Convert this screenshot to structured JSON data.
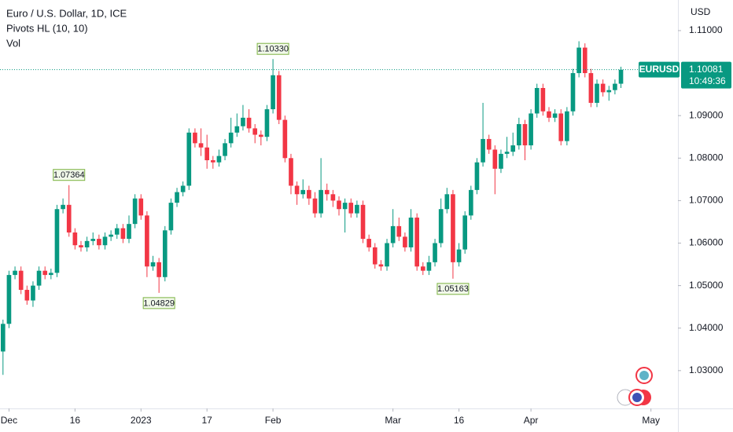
{
  "chart_data": {
    "type": "candlestick",
    "title": "Euro / U.S. Dollar, 1D, ICE",
    "indicators": [
      "Pivots HL (10, 10)",
      "Vol"
    ],
    "currency": "USD",
    "up_color": "#089981",
    "down_color": "#f23645",
    "grid": false,
    "xlim": [
      -0.5,
      112.5
    ],
    "ylim": [
      1.0211,
      1.1172
    ],
    "yticks": [
      {
        "value": 1.03,
        "label": "1.03000"
      },
      {
        "value": 1.04,
        "label": "1.04000"
      },
      {
        "value": 1.05,
        "label": "1.05000"
      },
      {
        "value": 1.06,
        "label": "1.06000"
      },
      {
        "value": 1.07,
        "label": "1.07000"
      },
      {
        "value": 1.08,
        "label": "1.08000"
      },
      {
        "value": 1.09,
        "label": "1.09000"
      },
      {
        "value": 1.11,
        "label": "1.11000"
      }
    ],
    "xticks": [
      {
        "value": 1,
        "label": "Dec"
      },
      {
        "value": 12,
        "label": "16"
      },
      {
        "value": 23,
        "label": "2023"
      },
      {
        "value": 34,
        "label": "17"
      },
      {
        "value": 45,
        "label": "Feb"
      },
      {
        "value": 65,
        "label": "Mar"
      },
      {
        "value": 76,
        "label": "16"
      },
      {
        "value": 88,
        "label": "Apr"
      },
      {
        "value": 108,
        "label": "May"
      }
    ],
    "open": [
      1.0345,
      1.041,
      1.0525,
      1.0535,
      1.049,
      1.0465,
      1.05,
      1.0535,
      1.0525,
      1.053,
      1.068,
      1.069,
      1.0625,
      1.0595,
      1.059,
      1.0605,
      1.061,
      1.0595,
      1.0615,
      1.062,
      1.0635,
      1.061,
      1.0645,
      1.0705,
      1.0665,
      1.0545,
      1.0555,
      1.052,
      1.063,
      1.0695,
      1.072,
      1.0735,
      1.086,
      1.0835,
      1.0825,
      1.0795,
      1.079,
      1.0805,
      1.0835,
      1.086,
      1.0875,
      1.0895,
      1.087,
      1.0855,
      1.085,
      1.0915,
      1.0995,
      1.089,
      1.08,
      1.0735,
      1.0715,
      1.0725,
      1.0705,
      1.067,
      1.0725,
      1.0715,
      1.07,
      1.068,
      1.0695,
      1.067,
      1.069,
      1.061,
      1.059,
      1.055,
      1.0545,
      1.06,
      1.064,
      1.0615,
      1.059,
      1.066,
      1.0545,
      1.0535,
      1.0555,
      1.06,
      1.068,
      1.0715,
      1.0555,
      1.0585,
      1.0665,
      1.0725,
      1.079,
      1.0845,
      1.082,
      1.0775,
      1.081,
      1.0815,
      1.083,
      1.088,
      1.083,
      1.0905,
      1.0965,
      1.091,
      1.0895,
      1.0905,
      1.084,
      1.091,
      1.1,
      1.106,
      1.1,
      1.093,
      1.0975,
      1.0955,
      1.096,
      1.0975
    ],
    "high": [
      1.042,
      1.0535,
      1.0545,
      1.0545,
      1.05,
      1.051,
      1.0545,
      1.0545,
      1.054,
      1.069,
      1.0705,
      1.07364,
      1.0635,
      1.0605,
      1.0615,
      1.0625,
      1.062,
      1.0625,
      1.063,
      1.0645,
      1.0645,
      1.0665,
      1.0715,
      1.0715,
      1.0675,
      1.057,
      1.0565,
      1.064,
      1.0705,
      1.073,
      1.0745,
      1.087,
      1.087,
      1.087,
      1.0855,
      1.0805,
      1.082,
      1.0845,
      1.0895,
      1.0905,
      1.0925,
      1.0915,
      1.088,
      1.0865,
      1.0925,
      1.1033,
      1.1005,
      1.09,
      1.081,
      1.0745,
      1.075,
      1.0735,
      1.072,
      1.08,
      1.074,
      1.0725,
      1.071,
      1.0705,
      1.0705,
      1.07,
      1.07,
      1.062,
      1.06,
      1.056,
      1.061,
      1.068,
      1.066,
      1.0625,
      1.068,
      1.067,
      1.0555,
      1.057,
      1.061,
      1.0705,
      1.073,
      1.0725,
      1.06,
      1.0675,
      1.0735,
      1.08,
      1.093,
      1.0855,
      1.083,
      1.082,
      1.085,
      1.086,
      1.0895,
      1.089,
      1.0915,
      1.0975,
      1.0975,
      1.092,
      1.0915,
      1.0915,
      1.092,
      1.101,
      1.1075,
      1.107,
      1.101,
      1.0985,
      1.0985,
      1.097,
      1.0985,
      1.1015
    ],
    "low": [
      1.029,
      1.04,
      1.0515,
      1.048,
      1.0455,
      1.045,
      1.049,
      1.0515,
      1.0515,
      1.052,
      1.067,
      1.0615,
      1.0585,
      1.058,
      1.058,
      1.0595,
      1.0585,
      1.0585,
      1.0605,
      1.061,
      1.06,
      1.06,
      1.0635,
      1.0655,
      1.052,
      1.0535,
      1.04829,
      1.051,
      1.062,
      1.0685,
      1.071,
      1.0725,
      1.0825,
      1.0805,
      1.0775,
      1.0775,
      1.078,
      1.0795,
      1.0825,
      1.085,
      1.0865,
      1.086,
      1.0835,
      1.083,
      1.084,
      1.0905,
      1.088,
      1.079,
      1.0715,
      1.069,
      1.0705,
      1.069,
      1.066,
      1.066,
      1.07,
      1.0685,
      1.0665,
      1.0625,
      1.066,
      1.066,
      1.06,
      1.058,
      1.054,
      1.0535,
      1.0535,
      1.059,
      1.0605,
      1.058,
      1.058,
      1.0535,
      1.0525,
      1.0525,
      1.0545,
      1.059,
      1.067,
      1.05163,
      1.0545,
      1.0575,
      1.0655,
      1.0715,
      1.078,
      1.081,
      1.0715,
      1.0765,
      1.08,
      1.0805,
      1.082,
      1.0795,
      1.082,
      1.0895,
      1.09,
      1.0885,
      1.0885,
      1.083,
      1.083,
      1.09,
      1.099,
      1.099,
      1.092,
      1.092,
      1.0945,
      1.0935,
      1.095,
      1.0965
    ],
    "close": [
      1.041,
      1.0525,
      1.0535,
      1.049,
      1.0465,
      1.05,
      1.0535,
      1.0525,
      1.053,
      1.068,
      1.069,
      1.0625,
      1.0595,
      1.059,
      1.0605,
      1.061,
      1.0595,
      1.0615,
      1.062,
      1.0635,
      1.061,
      1.0645,
      1.0705,
      1.0665,
      1.0545,
      1.0555,
      1.052,
      1.063,
      1.0695,
      1.072,
      1.0735,
      1.086,
      1.0835,
      1.0825,
      1.0795,
      1.079,
      1.0805,
      1.0835,
      1.086,
      1.0875,
      1.0895,
      1.087,
      1.0855,
      1.085,
      1.0915,
      1.0995,
      1.089,
      1.08,
      1.0735,
      1.0715,
      1.0725,
      1.0705,
      1.067,
      1.0725,
      1.0715,
      1.07,
      1.068,
      1.0695,
      1.067,
      1.069,
      1.061,
      1.059,
      1.055,
      1.0545,
      1.06,
      1.064,
      1.0615,
      1.059,
      1.066,
      1.0545,
      1.0535,
      1.0555,
      1.06,
      1.068,
      1.0715,
      1.0555,
      1.0585,
      1.0665,
      1.0725,
      1.079,
      1.0845,
      1.082,
      1.0775,
      1.081,
      1.0815,
      1.083,
      1.088,
      1.083,
      1.0905,
      1.0965,
      1.091,
      1.0895,
      1.0905,
      1.084,
      1.091,
      1.1,
      1.106,
      1.1,
      1.093,
      1.0975,
      1.0955,
      1.096,
      1.0975,
      1.1008
    ],
    "pivots": [
      {
        "index": 11,
        "kind": "high",
        "value": 1.07364,
        "label": "1.07364"
      },
      {
        "index": 26,
        "kind": "low",
        "value": 1.04829,
        "label": "1.04829"
      },
      {
        "index": 45,
        "kind": "high",
        "value": 1.1033,
        "label": "1.10330"
      },
      {
        "index": 75,
        "kind": "low",
        "value": 1.05163,
        "label": "1.05163"
      }
    ],
    "last_price": {
      "symbol": "EURUSD",
      "value": 1.10081,
      "label": "1.10081",
      "countdown": "10:49:36"
    }
  }
}
